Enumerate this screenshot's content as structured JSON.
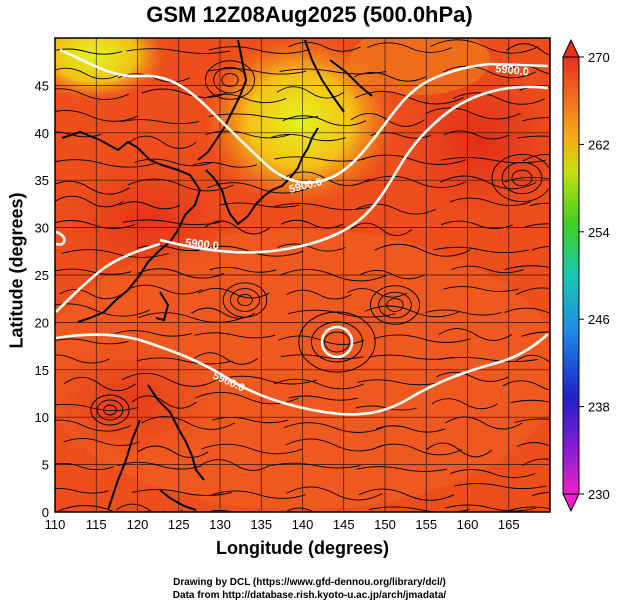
{
  "title": "GSM 12Z08Aug2025 (500.0hPa)",
  "xaxis": {
    "label": "Longitude (degrees)",
    "ticks": [
      "110",
      "115",
      "120",
      "125",
      "130",
      "135",
      "140",
      "145",
      "150",
      "155",
      "160",
      "165"
    ]
  },
  "yaxis": {
    "label": "Latitude (degrees)",
    "ticks": [
      "0",
      "5",
      "10",
      "15",
      "20",
      "25",
      "30",
      "35",
      "40",
      "45"
    ]
  },
  "colorbar": {
    "ticks": [
      "230",
      "238",
      "246",
      "254",
      "262",
      "270"
    ]
  },
  "contours": [
    {
      "label": "5900.0"
    },
    {
      "label": "5900.0"
    },
    {
      "label": "5900.0"
    },
    {
      "label": "5900.0"
    }
  ],
  "credits": {
    "line1": "Drawing by DCL (https://www.gfd-dennou.org/library/dcl/)",
    "line2": "Data from http://database.rish.kyoto-u.ac.jp/arch/jmadata/"
  },
  "colors": {
    "field_base": "#ee4e1c",
    "field_warm": "#e8321a",
    "field_cool": "#f5a018",
    "field_cold": "#d8f020",
    "contour": "#ffffff",
    "coast": "#000000"
  }
}
